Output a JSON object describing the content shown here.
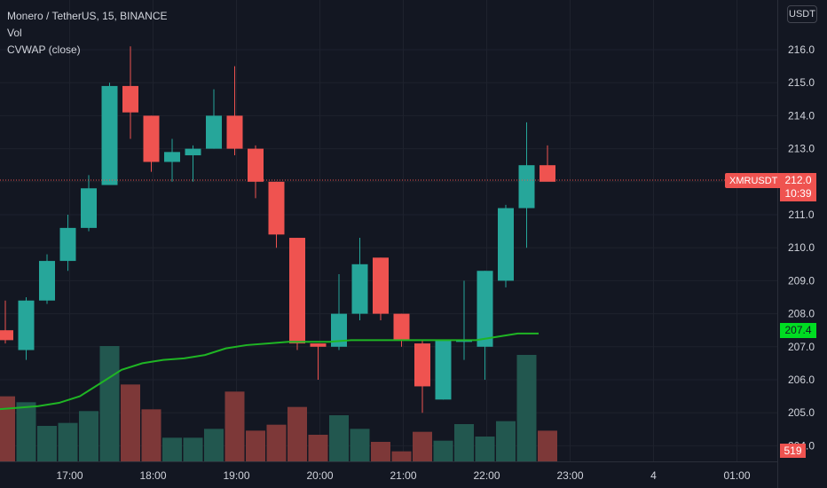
{
  "legend": {
    "symbol": "Monero / TetherUS, 15, BINANCE",
    "volume": "Vol",
    "cvwap": "CVWAP (close)"
  },
  "currency_button": "USDT",
  "symbol_tag": "XMRUSDT",
  "last_price": "212.0",
  "countdown": "10:39",
  "vwap_value": "207.4",
  "volume_value": "519",
  "colors": {
    "up": "#26a69a",
    "down": "#ef5350",
    "up_volume": "#22574f",
    "down_volume": "#7d3838",
    "vwap": "#1fb524",
    "background": "#131722"
  },
  "chart_data": {
    "type": "candlestick",
    "price_axis": {
      "ylim": [
        204.0,
        216.0
      ],
      "ticks": [
        "204.0",
        "205.0",
        "206.0",
        "207.0",
        "208.0",
        "209.0",
        "210.0",
        "211.0",
        "212.0",
        "213.0",
        "214.0",
        "215.0",
        "216.0"
      ]
    },
    "time_axis": {
      "ticks": [
        "17:00",
        "18:00",
        "19:00",
        "20:00",
        "21:00",
        "22:00",
        "23:00",
        "4",
        "01:00"
      ],
      "tick_index": [
        1,
        5,
        9,
        13,
        17,
        21,
        25,
        29,
        33
      ]
    },
    "candles": [
      {
        "o": 207.5,
        "h": 208.4,
        "l": 207.1,
        "c": 207.2
      },
      {
        "o": 206.9,
        "h": 208.5,
        "l": 206.6,
        "c": 208.4
      },
      {
        "o": 208.4,
        "h": 209.8,
        "l": 208.3,
        "c": 209.6
      },
      {
        "o": 209.6,
        "h": 211.0,
        "l": 209.3,
        "c": 210.6
      },
      {
        "o": 210.6,
        "h": 212.2,
        "l": 210.5,
        "c": 211.8
      },
      {
        "o": 211.9,
        "h": 215.0,
        "l": 211.9,
        "c": 214.9
      },
      {
        "o": 214.9,
        "h": 216.1,
        "l": 213.3,
        "c": 214.1
      },
      {
        "o": 214.0,
        "h": 214.0,
        "l": 212.3,
        "c": 212.6
      },
      {
        "o": 212.6,
        "h": 213.3,
        "l": 212.0,
        "c": 212.9
      },
      {
        "o": 212.8,
        "h": 213.1,
        "l": 212.0,
        "c": 213.0
      },
      {
        "o": 213.0,
        "h": 214.8,
        "l": 213.0,
        "c": 214.0
      },
      {
        "o": 214.0,
        "h": 215.5,
        "l": 212.8,
        "c": 213.0
      },
      {
        "o": 213.0,
        "h": 213.1,
        "l": 211.5,
        "c": 212.0
      },
      {
        "o": 212.0,
        "h": 212.0,
        "l": 210.0,
        "c": 210.4
      },
      {
        "o": 210.3,
        "h": 210.3,
        "l": 206.9,
        "c": 207.1
      },
      {
        "o": 207.1,
        "h": 207.1,
        "l": 206.0,
        "c": 207.0
      },
      {
        "o": 207.0,
        "h": 209.2,
        "l": 206.9,
        "c": 208.0
      },
      {
        "o": 208.0,
        "h": 210.3,
        "l": 207.8,
        "c": 209.5
      },
      {
        "o": 209.7,
        "h": 209.7,
        "l": 207.8,
        "c": 208.0
      },
      {
        "o": 208.0,
        "h": 208.0,
        "l": 207.0,
        "c": 207.2
      },
      {
        "o": 207.1,
        "h": 207.2,
        "l": 205.0,
        "c": 205.8
      },
      {
        "o": 205.4,
        "h": 207.2,
        "l": 205.4,
        "c": 207.2
      },
      {
        "o": 207.2,
        "h": 209.0,
        "l": 206.6,
        "c": 207.2
      },
      {
        "o": 207.0,
        "h": 209.3,
        "l": 206.0,
        "c": 209.3
      },
      {
        "o": 209.0,
        "h": 211.3,
        "l": 208.8,
        "c": 211.2
      },
      {
        "o": 211.2,
        "h": 213.8,
        "l": 210.0,
        "c": 212.5
      },
      {
        "o": 212.5,
        "h": 213.1,
        "l": 212.1,
        "c": 212.0
      }
    ],
    "volumes": [
      {
        "v": 1100,
        "dir": "down"
      },
      {
        "v": 1000,
        "dir": "up"
      },
      {
        "v": 600,
        "dir": "up"
      },
      {
        "v": 650,
        "dir": "up"
      },
      {
        "v": 850,
        "dir": "up"
      },
      {
        "v": 1950,
        "dir": "up"
      },
      {
        "v": 1300,
        "dir": "down"
      },
      {
        "v": 880,
        "dir": "down"
      },
      {
        "v": 400,
        "dir": "up"
      },
      {
        "v": 400,
        "dir": "up"
      },
      {
        "v": 550,
        "dir": "up"
      },
      {
        "v": 1180,
        "dir": "down"
      },
      {
        "v": 520,
        "dir": "down"
      },
      {
        "v": 620,
        "dir": "down"
      },
      {
        "v": 920,
        "dir": "down"
      },
      {
        "v": 450,
        "dir": "down"
      },
      {
        "v": 780,
        "dir": "up"
      },
      {
        "v": 550,
        "dir": "up"
      },
      {
        "v": 330,
        "dir": "down"
      },
      {
        "v": 170,
        "dir": "down"
      },
      {
        "v": 500,
        "dir": "down"
      },
      {
        "v": 350,
        "dir": "up"
      },
      {
        "v": 630,
        "dir": "up"
      },
      {
        "v": 420,
        "dir": "up"
      },
      {
        "v": 680,
        "dir": "up"
      },
      {
        "v": 1800,
        "dir": "up"
      },
      {
        "v": 519,
        "dir": "down"
      }
    ],
    "cvwap": [
      205.1,
      205.15,
      205.2,
      205.3,
      205.5,
      205.9,
      206.3,
      206.5,
      206.6,
      206.65,
      206.75,
      206.95,
      207.05,
      207.1,
      207.15,
      207.15,
      207.15,
      207.2,
      207.2,
      207.2,
      207.2,
      207.2,
      207.2,
      207.2,
      207.3,
      207.4,
      207.4
    ]
  }
}
